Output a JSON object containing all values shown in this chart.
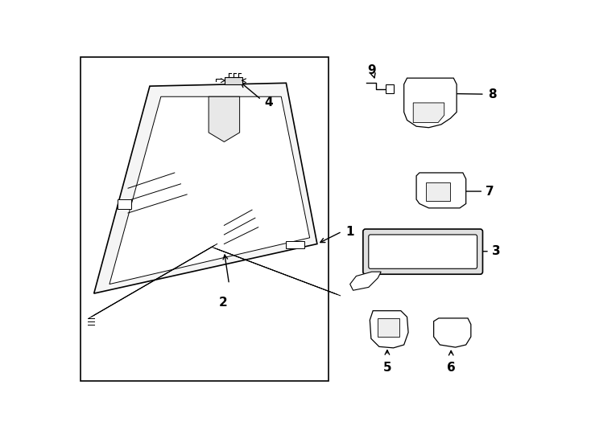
{
  "bg_color": "#ffffff",
  "line_color": "#000000",
  "label_color": "#000000",
  "fig_width": 7.34,
  "fig_height": 5.4,
  "dpi": 100
}
